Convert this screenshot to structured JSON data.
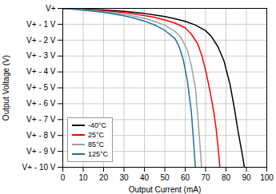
{
  "chart_data": {
    "type": "line",
    "title": "",
    "xlabel": "Output Current (mA)",
    "ylabel": "Output Voltage (V)",
    "xlim": [
      0,
      100
    ],
    "ylim": [
      -10,
      0
    ],
    "xticks": [
      0,
      10,
      20,
      30,
      40,
      50,
      60,
      70,
      80,
      90,
      100
    ],
    "yticks": [
      {
        "value": 0,
        "label": "V+"
      },
      {
        "value": -1,
        "label": "V+ - 1 V"
      },
      {
        "value": -2,
        "label": "V+ - 2 V"
      },
      {
        "value": -3,
        "label": "V+ - 3 V"
      },
      {
        "value": -4,
        "label": "V+ - 4 V"
      },
      {
        "value": -5,
        "label": "V+ - 5 V"
      },
      {
        "value": -6,
        "label": "V+ - 6 V"
      },
      {
        "value": -7,
        "label": "V+ - 7 V"
      },
      {
        "value": -8,
        "label": "V+ - 8 V"
      },
      {
        "value": -9,
        "label": "V+ - 9 V"
      },
      {
        "value": -10,
        "label": "V+ - 10 V"
      }
    ],
    "grid": true,
    "legend": "lower left",
    "series": [
      {
        "name": "-40°C",
        "color": "#000000",
        "x": [
          0,
          5,
          10,
          15,
          20,
          25,
          30,
          35,
          40,
          45,
          50,
          55,
          60,
          65,
          70,
          73,
          76,
          79,
          82,
          84,
          85,
          86,
          87,
          88,
          89
        ],
        "values": [
          0,
          -0.02,
          -0.04,
          -0.07,
          -0.1,
          -0.14,
          -0.19,
          -0.25,
          -0.32,
          -0.41,
          -0.52,
          -0.65,
          -0.82,
          -1.05,
          -1.4,
          -1.8,
          -2.4,
          -3.3,
          -4.8,
          -6.2,
          -7.0,
          -7.8,
          -8.5,
          -9.2,
          -10.0
        ]
      },
      {
        "name": "25°C",
        "color": "#ff0000",
        "x": [
          0,
          5,
          10,
          15,
          20,
          25,
          30,
          35,
          40,
          45,
          50,
          55,
          60,
          63,
          66,
          68,
          70,
          72,
          74,
          75,
          76,
          77
        ],
        "values": [
          0,
          -0.03,
          -0.06,
          -0.1,
          -0.15,
          -0.2,
          -0.27,
          -0.35,
          -0.45,
          -0.57,
          -0.73,
          -0.93,
          -1.22,
          -1.62,
          -2.2,
          -2.9,
          -3.9,
          -5.1,
          -6.5,
          -7.4,
          -8.6,
          -10.0
        ]
      },
      {
        "name": "85°C",
        "color": "#a0a0a0",
        "x": [
          0,
          5,
          10,
          15,
          20,
          25,
          30,
          35,
          40,
          45,
          50,
          55,
          58,
          61,
          63,
          65,
          66,
          67,
          68
        ],
        "values": [
          0,
          -0.04,
          -0.09,
          -0.14,
          -0.2,
          -0.28,
          -0.37,
          -0.49,
          -0.63,
          -0.82,
          -1.06,
          -1.45,
          -1.85,
          -2.6,
          -3.6,
          -5.0,
          -6.5,
          -8.2,
          -10.0
        ]
      },
      {
        "name": "125°C",
        "color": "#1f6fa0",
        "x": [
          0,
          5,
          10,
          15,
          20,
          25,
          30,
          35,
          40,
          45,
          50,
          55,
          57,
          59,
          61,
          63,
          64,
          65
        ],
        "values": [
          0,
          -0.05,
          -0.11,
          -0.18,
          -0.25,
          -0.35,
          -0.47,
          -0.62,
          -0.8,
          -1.04,
          -1.38,
          -1.9,
          -2.4,
          -3.2,
          -4.5,
          -6.5,
          -8.2,
          -10.0
        ]
      }
    ]
  }
}
